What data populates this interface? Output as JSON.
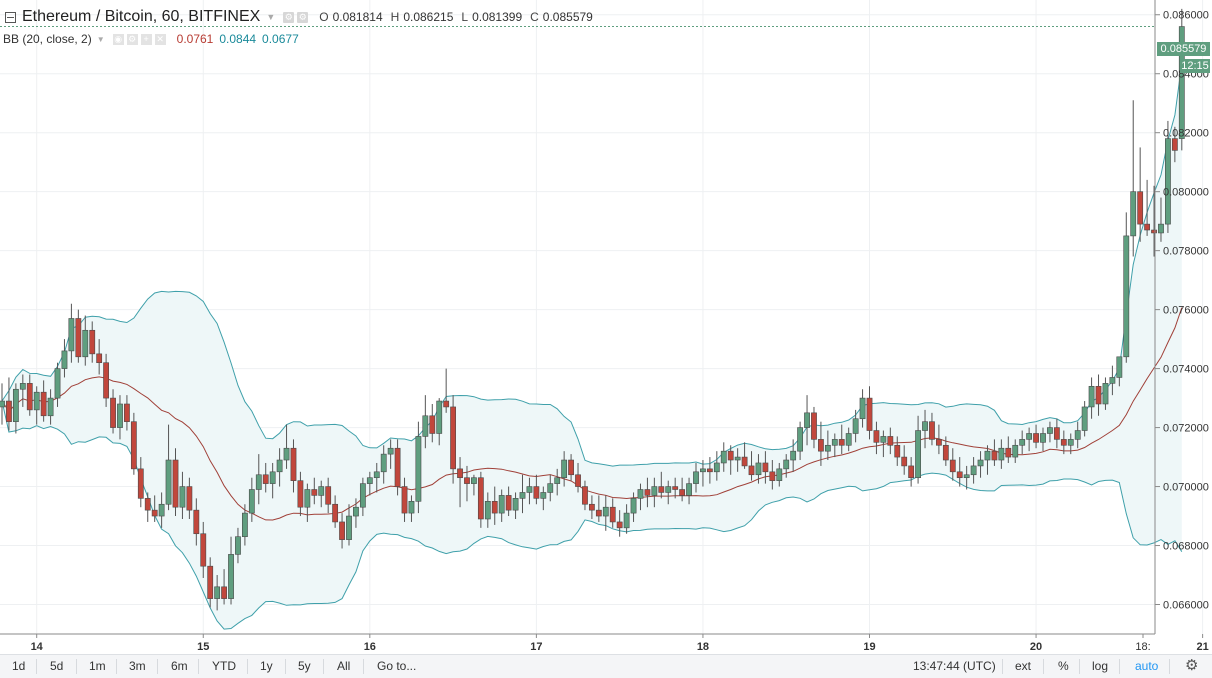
{
  "header": {
    "title": "Ethereum / Bitcoin, 60, BITFINEX",
    "ohlc": [
      {
        "label": "O",
        "value": "0.081814"
      },
      {
        "label": "H",
        "value": "0.086215"
      },
      {
        "label": "L",
        "value": "0.081399"
      },
      {
        "label": "C",
        "value": "0.085579"
      }
    ]
  },
  "indicator": {
    "label": "BB (20, close, 2)",
    "basis": "0.0761",
    "upper": "0.0844",
    "lower": "0.0677"
  },
  "price_badge": "0.085579",
  "time_badge": "12:15",
  "toolbar": {
    "ranges": [
      "1d",
      "5d",
      "1m",
      "3m",
      "6m",
      "YTD",
      "1y",
      "5y",
      "All"
    ],
    "goto": "Go to...",
    "clock": "13:47:44 (UTC)",
    "ext": "ext",
    "percent": "%",
    "log": "log",
    "auto": "auto"
  },
  "colors": {
    "up": "#5f9e7f",
    "down": "#c1473c",
    "band": "#3fa0aa",
    "basis": "#a04038",
    "band_fill": "#eef7f8"
  },
  "chart_data": {
    "type": "candlestick",
    "ylim": [
      0.065,
      0.0865
    ],
    "yticks": [
      "0.066000",
      "0.068000",
      "0.070000",
      "0.072000",
      "0.074000",
      "0.076000",
      "0.078000",
      "0.080000",
      "0.082000",
      "0.084000",
      "0.086000"
    ],
    "xticks": [
      "14",
      "15",
      "16",
      "17",
      "18",
      "19",
      "20",
      "21",
      "18:"
    ],
    "indicator": "Bollinger Bands (20, close, 2)",
    "series_ohlc": [
      [
        0.0727,
        0.0735,
        0.0721,
        0.0729
      ],
      [
        0.0729,
        0.0737,
        0.0719,
        0.0722
      ],
      [
        0.0722,
        0.0735,
        0.0718,
        0.0733
      ],
      [
        0.0733,
        0.0738,
        0.0727,
        0.0735
      ],
      [
        0.0735,
        0.0738,
        0.0724,
        0.0726
      ],
      [
        0.0726,
        0.0734,
        0.0721,
        0.0732
      ],
      [
        0.0732,
        0.0736,
        0.0722,
        0.0724
      ],
      [
        0.0724,
        0.0733,
        0.0721,
        0.073
      ],
      [
        0.073,
        0.0742,
        0.0727,
        0.074
      ],
      [
        0.074,
        0.075,
        0.0737,
        0.0746
      ],
      [
        0.0746,
        0.0762,
        0.0742,
        0.0757
      ],
      [
        0.0757,
        0.076,
        0.0742,
        0.0744
      ],
      [
        0.0744,
        0.0758,
        0.0741,
        0.0753
      ],
      [
        0.0753,
        0.0756,
        0.0742,
        0.0745
      ],
      [
        0.0745,
        0.075,
        0.0738,
        0.0742
      ],
      [
        0.0742,
        0.0745,
        0.0727,
        0.073
      ],
      [
        0.073,
        0.0733,
        0.0718,
        0.072
      ],
      [
        0.072,
        0.0731,
        0.0716,
        0.0728
      ],
      [
        0.0728,
        0.0731,
        0.0719,
        0.0722
      ],
      [
        0.0722,
        0.0725,
        0.0704,
        0.0706
      ],
      [
        0.0706,
        0.071,
        0.0693,
        0.0696
      ],
      [
        0.0696,
        0.0698,
        0.0688,
        0.0692
      ],
      [
        0.0692,
        0.0697,
        0.0688,
        0.069
      ],
      [
        0.069,
        0.0698,
        0.0686,
        0.0694
      ],
      [
        0.0694,
        0.0721,
        0.0692,
        0.0709
      ],
      [
        0.0709,
        0.0713,
        0.069,
        0.0693
      ],
      [
        0.0693,
        0.0705,
        0.0689,
        0.07
      ],
      [
        0.07,
        0.0703,
        0.0689,
        0.0692
      ],
      [
        0.0692,
        0.0696,
        0.068,
        0.0684
      ],
      [
        0.0684,
        0.0688,
        0.0669,
        0.0673
      ],
      [
        0.0673,
        0.0676,
        0.0659,
        0.0662
      ],
      [
        0.0662,
        0.067,
        0.0658,
        0.0666
      ],
      [
        0.0666,
        0.0672,
        0.066,
        0.0662
      ],
      [
        0.0662,
        0.0683,
        0.066,
        0.0677
      ],
      [
        0.0677,
        0.0686,
        0.0674,
        0.0683
      ],
      [
        0.0683,
        0.0694,
        0.068,
        0.0691
      ],
      [
        0.0691,
        0.0703,
        0.0688,
        0.0699
      ],
      [
        0.0699,
        0.0711,
        0.0694,
        0.0704
      ],
      [
        0.0704,
        0.0708,
        0.0698,
        0.0701
      ],
      [
        0.0701,
        0.0708,
        0.0696,
        0.0705
      ],
      [
        0.0705,
        0.0713,
        0.07,
        0.0709
      ],
      [
        0.0709,
        0.0721,
        0.0706,
        0.0713
      ],
      [
        0.0713,
        0.0716,
        0.0698,
        0.0702
      ],
      [
        0.0702,
        0.0705,
        0.069,
        0.0693
      ],
      [
        0.0693,
        0.0701,
        0.0688,
        0.0699
      ],
      [
        0.0699,
        0.0703,
        0.0694,
        0.0697
      ],
      [
        0.0697,
        0.0702,
        0.0693,
        0.07
      ],
      [
        0.07,
        0.0703,
        0.0691,
        0.0694
      ],
      [
        0.0694,
        0.0697,
        0.0686,
        0.0688
      ],
      [
        0.0688,
        0.0691,
        0.0679,
        0.0682
      ],
      [
        0.0682,
        0.0694,
        0.068,
        0.069
      ],
      [
        0.069,
        0.0696,
        0.0686,
        0.0693
      ],
      [
        0.0693,
        0.0703,
        0.069,
        0.0701
      ],
      [
        0.0701,
        0.0705,
        0.0697,
        0.0703
      ],
      [
        0.0703,
        0.0708,
        0.0698,
        0.0705
      ],
      [
        0.0705,
        0.0714,
        0.0701,
        0.0711
      ],
      [
        0.0711,
        0.0716,
        0.0706,
        0.0713
      ],
      [
        0.0713,
        0.0716,
        0.0697,
        0.07
      ],
      [
        0.07,
        0.0703,
        0.0688,
        0.0691
      ],
      [
        0.0691,
        0.0697,
        0.0688,
        0.0695
      ],
      [
        0.0695,
        0.0722,
        0.0691,
        0.0717
      ],
      [
        0.0717,
        0.0731,
        0.0713,
        0.0724
      ],
      [
        0.0724,
        0.0728,
        0.0715,
        0.0718
      ],
      [
        0.0718,
        0.073,
        0.0714,
        0.0729
      ],
      [
        0.0729,
        0.074,
        0.0725,
        0.0727
      ],
      [
        0.0727,
        0.0731,
        0.0701,
        0.0706
      ],
      [
        0.0706,
        0.071,
        0.0693,
        0.0703
      ],
      [
        0.0703,
        0.0707,
        0.0695,
        0.0701
      ],
      [
        0.0701,
        0.0704,
        0.0697,
        0.0703
      ],
      [
        0.0703,
        0.0705,
        0.0686,
        0.0689
      ],
      [
        0.0689,
        0.0698,
        0.0686,
        0.0695
      ],
      [
        0.0695,
        0.07,
        0.0687,
        0.0691
      ],
      [
        0.0691,
        0.0699,
        0.0688,
        0.0697
      ],
      [
        0.0697,
        0.07,
        0.069,
        0.0692
      ],
      [
        0.0692,
        0.0698,
        0.0689,
        0.0696
      ],
      [
        0.0696,
        0.0704,
        0.0691,
        0.0698
      ],
      [
        0.0698,
        0.0703,
        0.0694,
        0.07
      ],
      [
        0.07,
        0.0704,
        0.0694,
        0.0696
      ],
      [
        0.0696,
        0.07,
        0.0692,
        0.0698
      ],
      [
        0.0698,
        0.0704,
        0.0695,
        0.0701
      ],
      [
        0.0701,
        0.0706,
        0.0697,
        0.0703
      ],
      [
        0.0703,
        0.0712,
        0.07,
        0.0709
      ],
      [
        0.0709,
        0.0711,
        0.0702,
        0.0704
      ],
      [
        0.0704,
        0.0708,
        0.0698,
        0.07
      ],
      [
        0.07,
        0.0702,
        0.0692,
        0.0694
      ],
      [
        0.0694,
        0.0697,
        0.0689,
        0.0692
      ],
      [
        0.0692,
        0.0697,
        0.0688,
        0.069
      ],
      [
        0.069,
        0.0697,
        0.0685,
        0.0693
      ],
      [
        0.0693,
        0.0696,
        0.0686,
        0.0688
      ],
      [
        0.0688,
        0.0692,
        0.0683,
        0.0686
      ],
      [
        0.0686,
        0.0694,
        0.0684,
        0.0691
      ],
      [
        0.0691,
        0.0698,
        0.0688,
        0.0696
      ],
      [
        0.0696,
        0.0701,
        0.0692,
        0.0699
      ],
      [
        0.0699,
        0.0703,
        0.0693,
        0.0697
      ],
      [
        0.0697,
        0.0703,
        0.0693,
        0.07
      ],
      [
        0.07,
        0.0705,
        0.0696,
        0.0698
      ],
      [
        0.0698,
        0.0702,
        0.0694,
        0.07
      ],
      [
        0.07,
        0.0703,
        0.0696,
        0.0699
      ],
      [
        0.0699,
        0.0703,
        0.0695,
        0.0697
      ],
      [
        0.0697,
        0.0703,
        0.0694,
        0.0701
      ],
      [
        0.0701,
        0.0708,
        0.0698,
        0.0705
      ],
      [
        0.0705,
        0.0709,
        0.07,
        0.0706
      ],
      [
        0.0706,
        0.071,
        0.0701,
        0.0705
      ],
      [
        0.0705,
        0.0712,
        0.0702,
        0.0708
      ],
      [
        0.0708,
        0.0715,
        0.0705,
        0.0712
      ],
      [
        0.0712,
        0.0714,
        0.0704,
        0.0709
      ],
      [
        0.0709,
        0.0713,
        0.0705,
        0.071
      ],
      [
        0.071,
        0.0715,
        0.0706,
        0.0707
      ],
      [
        0.0707,
        0.0712,
        0.0702,
        0.0704
      ],
      [
        0.0704,
        0.0711,
        0.0701,
        0.0708
      ],
      [
        0.0708,
        0.0712,
        0.0701,
        0.0705
      ],
      [
        0.0705,
        0.0709,
        0.0699,
        0.0702
      ],
      [
        0.0702,
        0.0708,
        0.07,
        0.0706
      ],
      [
        0.0706,
        0.0711,
        0.0703,
        0.0709
      ],
      [
        0.0709,
        0.0716,
        0.0705,
        0.0712
      ],
      [
        0.0712,
        0.0722,
        0.0709,
        0.072
      ],
      [
        0.072,
        0.0731,
        0.0714,
        0.0725
      ],
      [
        0.0725,
        0.0727,
        0.0713,
        0.0716
      ],
      [
        0.0716,
        0.0722,
        0.0707,
        0.0712
      ],
      [
        0.0712,
        0.0719,
        0.0709,
        0.0714
      ],
      [
        0.0714,
        0.0718,
        0.071,
        0.0716
      ],
      [
        0.0716,
        0.0721,
        0.0711,
        0.0714
      ],
      [
        0.0714,
        0.072,
        0.0712,
        0.0718
      ],
      [
        0.0718,
        0.0726,
        0.0715,
        0.0723
      ],
      [
        0.0723,
        0.0733,
        0.072,
        0.073
      ],
      [
        0.073,
        0.0734,
        0.0716,
        0.0719
      ],
      [
        0.0719,
        0.0722,
        0.0711,
        0.0715
      ],
      [
        0.0715,
        0.0719,
        0.071,
        0.0717
      ],
      [
        0.0717,
        0.072,
        0.0711,
        0.0714
      ],
      [
        0.0714,
        0.0717,
        0.0707,
        0.071
      ],
      [
        0.071,
        0.0714,
        0.0704,
        0.0707
      ],
      [
        0.0707,
        0.071,
        0.07,
        0.0703
      ],
      [
        0.0703,
        0.0724,
        0.0701,
        0.0719
      ],
      [
        0.0719,
        0.0726,
        0.0713,
        0.0722
      ],
      [
        0.0722,
        0.0725,
        0.0714,
        0.0716
      ],
      [
        0.0716,
        0.0721,
        0.0711,
        0.0714
      ],
      [
        0.0714,
        0.0717,
        0.0707,
        0.0709
      ],
      [
        0.0709,
        0.0713,
        0.0702,
        0.0705
      ],
      [
        0.0705,
        0.071,
        0.07,
        0.0703
      ],
      [
        0.0703,
        0.0707,
        0.0699,
        0.0704
      ],
      [
        0.0704,
        0.071,
        0.0701,
        0.0707
      ],
      [
        0.0707,
        0.0712,
        0.0703,
        0.0709
      ],
      [
        0.0709,
        0.0714,
        0.0704,
        0.0712
      ],
      [
        0.0712,
        0.0716,
        0.0707,
        0.0709
      ],
      [
        0.0709,
        0.0716,
        0.0706,
        0.0713
      ],
      [
        0.0713,
        0.0717,
        0.0708,
        0.071
      ],
      [
        0.071,
        0.0716,
        0.0708,
        0.0714
      ],
      [
        0.0714,
        0.0719,
        0.0711,
        0.0716
      ],
      [
        0.0716,
        0.072,
        0.0712,
        0.0718
      ],
      [
        0.0718,
        0.0721,
        0.0713,
        0.0715
      ],
      [
        0.0715,
        0.072,
        0.0712,
        0.0718
      ],
      [
        0.0718,
        0.0722,
        0.0715,
        0.072
      ],
      [
        0.072,
        0.0723,
        0.0713,
        0.0716
      ],
      [
        0.0716,
        0.0719,
        0.0711,
        0.0714
      ],
      [
        0.0714,
        0.0718,
        0.0711,
        0.0716
      ],
      [
        0.0716,
        0.0722,
        0.0713,
        0.0719
      ],
      [
        0.0719,
        0.0729,
        0.0717,
        0.0727
      ],
      [
        0.0727,
        0.0737,
        0.0723,
        0.0734
      ],
      [
        0.0734,
        0.0738,
        0.0724,
        0.0728
      ],
      [
        0.0728,
        0.0737,
        0.0726,
        0.0735
      ],
      [
        0.0735,
        0.0741,
        0.0731,
        0.0737
      ],
      [
        0.0737,
        0.0744,
        0.0734,
        0.0744
      ],
      [
        0.0744,
        0.0793,
        0.0742,
        0.0785
      ],
      [
        0.0785,
        0.0831,
        0.0778,
        0.08
      ],
      [
        0.08,
        0.0815,
        0.0783,
        0.0789
      ],
      [
        0.0789,
        0.0804,
        0.0785,
        0.0787
      ],
      [
        0.0787,
        0.0802,
        0.0778,
        0.0786
      ],
      [
        0.0786,
        0.0798,
        0.0783,
        0.0789
      ],
      [
        0.0789,
        0.0824,
        0.0786,
        0.0818
      ],
      [
        0.0818,
        0.0822,
        0.081,
        0.0814
      ],
      [
        0.0818,
        0.0862,
        0.0814,
        0.0856
      ]
    ]
  }
}
